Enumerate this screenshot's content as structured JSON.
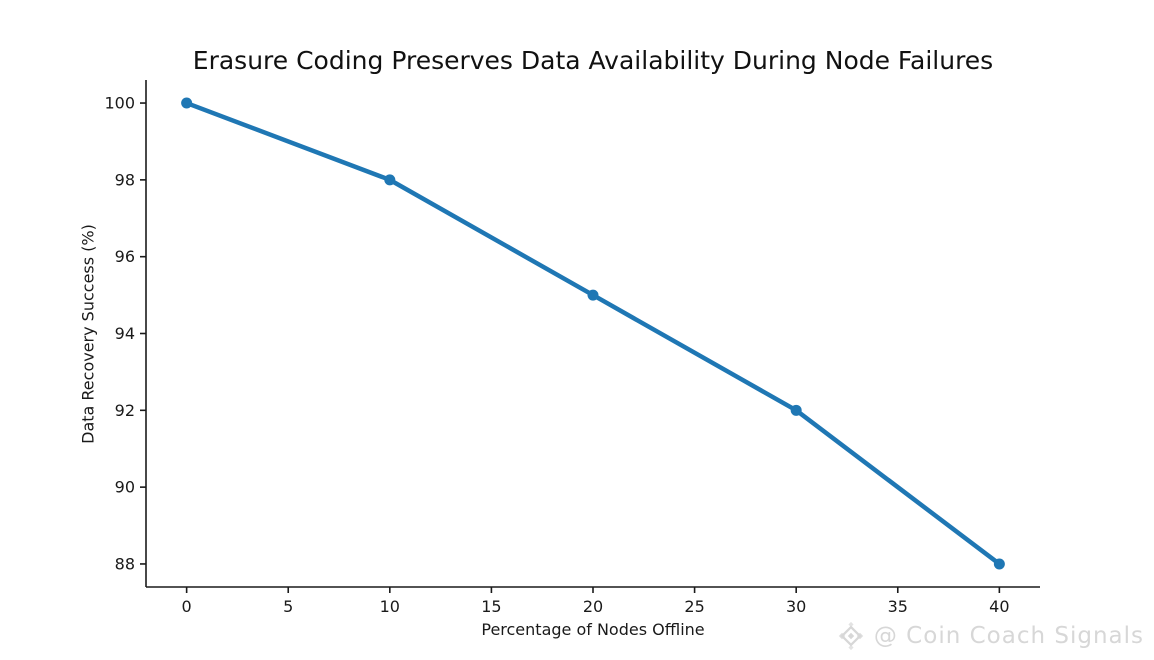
{
  "chart_data": {
    "type": "line",
    "title": "Erasure Coding Preserves Data Availability During Node Failures",
    "xlabel": "Percentage of Nodes Offline",
    "ylabel": "Data Recovery Success (%)",
    "x": [
      0,
      10,
      20,
      30,
      40
    ],
    "y": [
      100,
      98,
      95,
      92,
      88
    ],
    "xticks": [
      0,
      5,
      10,
      15,
      20,
      25,
      30,
      35,
      40
    ],
    "yticks": [
      88,
      90,
      92,
      94,
      96,
      98,
      100
    ],
    "xlim": [
      -2,
      42
    ],
    "ylim": [
      87.4,
      100.6
    ],
    "grid": false,
    "legend_position": "none",
    "line_color": "#1f77b4",
    "marker": "circle",
    "axis_color": "#1a1a1a",
    "text_color": "#1a1a1a"
  },
  "watermark": {
    "text": "@ Coin Coach Signals",
    "icon": "binance-diamond-logo",
    "color": "#d7d7d7"
  }
}
